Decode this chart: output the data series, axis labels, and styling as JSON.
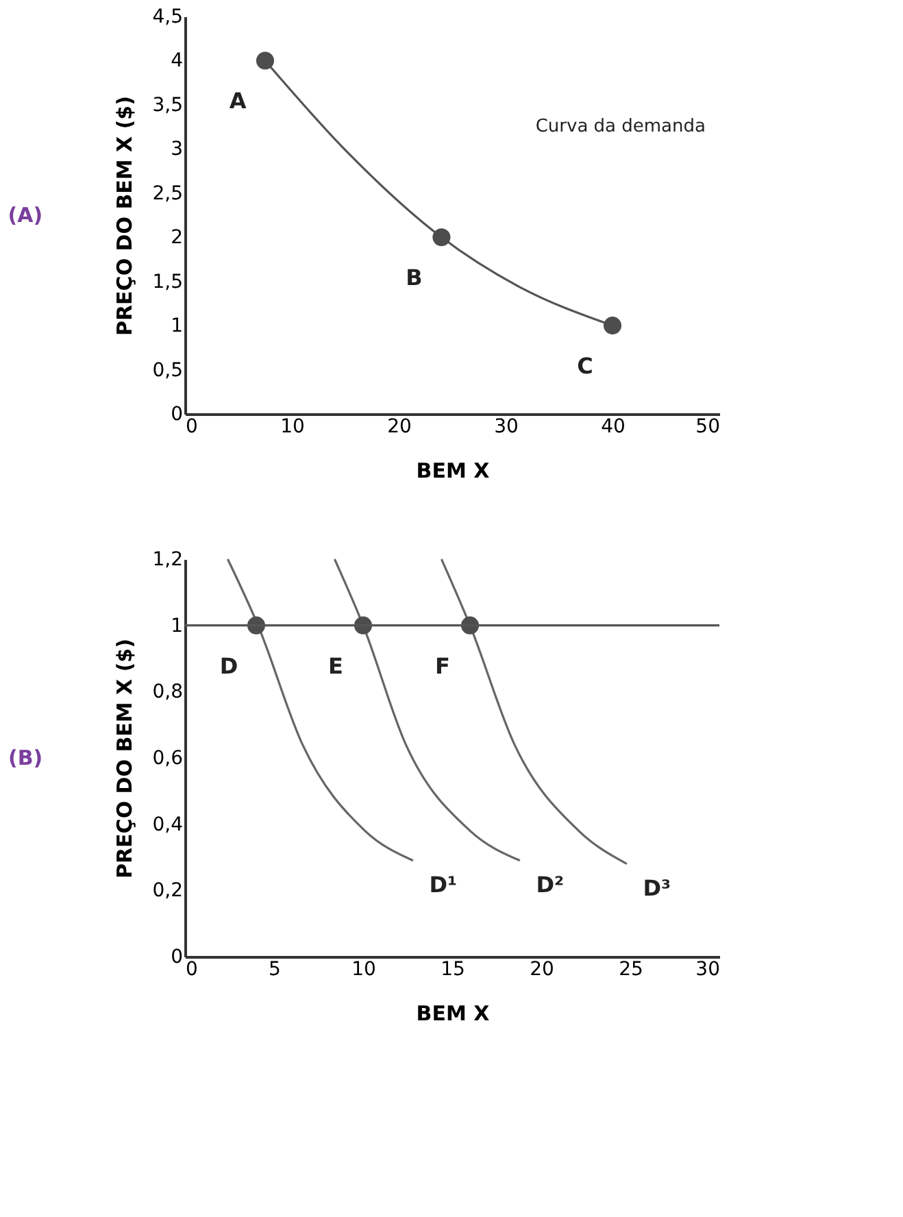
{
  "chart_data": [
    {
      "type": "line",
      "title": "(A)",
      "xlabel": "BEM X",
      "ylabel": "PREÇO DO BEM X ($)",
      "xlim": [
        0,
        50
      ],
      "xticks": [
        0,
        10,
        20,
        30,
        40,
        50
      ],
      "ylim": [
        0,
        4.5
      ],
      "yticks": [
        0,
        {
          "value": 0.5,
          "label": "0,5"
        },
        1,
        {
          "value": 1.5,
          "label": "1,5"
        },
        2,
        {
          "value": 2.5,
          "label": "2,5"
        },
        3,
        {
          "value": 3.5,
          "label": "3,5"
        },
        4,
        {
          "value": 4.5,
          "label": "4,5"
        }
      ],
      "grid": false,
      "series": [
        {
          "color": "#555555",
          "x": [
            7.5,
            14.9,
            24,
            31.1,
            40
          ],
          "values": [
            4,
            3.0,
            2,
            1.45,
            1
          ]
        },
        {
          "type": "scatter",
          "color": "#4d4d4d",
          "x": [
            7.5,
            24,
            40
          ],
          "values": [
            4,
            2,
            1
          ]
        }
      ],
      "annotations": [
        {
          "text": "A",
          "x": 7.5,
          "y": 4
        },
        {
          "text": "B",
          "x": 24,
          "y": 2
        },
        {
          "text": "C",
          "x": 40,
          "y": 1
        },
        "Curva da demanda"
      ]
    },
    {
      "type": "line",
      "title": "(B)",
      "xlabel": "BEM X",
      "ylabel": "PREÇO DO BEM X ($)",
      "xlim": [
        0,
        30
      ],
      "xticks": [
        0,
        5,
        10,
        15,
        20,
        25,
        30
      ],
      "ylim": [
        0,
        1.2
      ],
      "yticks": [
        0,
        {
          "value": 0.2,
          "label": "0,2"
        },
        {
          "value": 0.4,
          "label": "0,4"
        },
        {
          "value": 0.6,
          "label": "0,6"
        },
        {
          "value": 0.8,
          "label": "0,8"
        },
        1,
        {
          "value": 1.2,
          "label": "1,2"
        }
      ],
      "grid": false,
      "ref_lines": [
        {
          "axis": "y",
          "value": 1,
          "color": "#555555"
        }
      ],
      "series": [
        {
          "name": "D¹",
          "color": "#666666",
          "x": [
            2.4,
            4.1,
            6.6,
            10.1,
            12.8
          ],
          "values": [
            1.2,
            1.0,
            0.64,
            0.38,
            0.29
          ]
        },
        {
          "name": "D²",
          "color": "#666666",
          "x": [
            8.4,
            10,
            12.4,
            16,
            18.8
          ],
          "values": [
            1.2,
            1.0,
            0.64,
            0.38,
            0.29
          ]
        },
        {
          "name": "D³",
          "color": "#666666",
          "x": [
            14.4,
            16,
            18.5,
            22.1,
            24.8
          ],
          "values": [
            1.2,
            1.0,
            0.64,
            0.38,
            0.28
          ]
        },
        {
          "type": "scatter",
          "color": "#4d4d4d",
          "x": [
            4,
            10,
            16
          ],
          "values": [
            1,
            1,
            1
          ]
        }
      ],
      "annotations": [
        {
          "text": "D",
          "x": 4,
          "y": 1
        },
        {
          "text": "E",
          "x": 10,
          "y": 1
        },
        {
          "text": "F",
          "x": 16,
          "y": 1
        }
      ]
    }
  ]
}
